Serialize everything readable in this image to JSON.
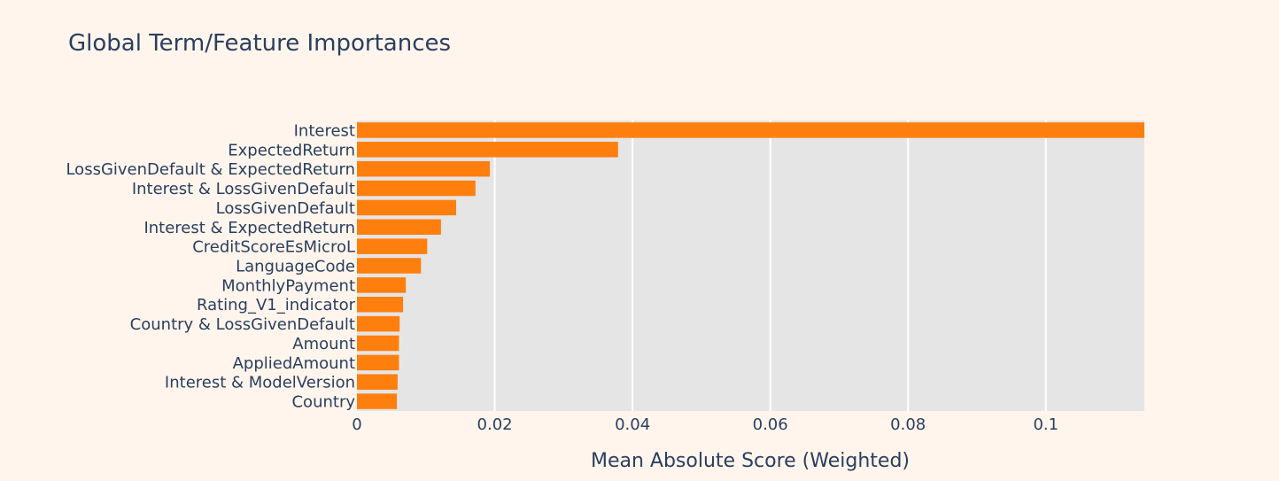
{
  "chart_data": {
    "type": "bar",
    "orientation": "horizontal",
    "title": "Global Term/Feature Importances",
    "xlabel": "Mean Absolute Score (Weighted)",
    "ylabel": "",
    "xlim": [
      0,
      0.1143
    ],
    "xticks": [
      {
        "value": 0,
        "label": "0"
      },
      {
        "value": 0.02,
        "label": "0.02"
      },
      {
        "value": 0.04,
        "label": "0.04"
      },
      {
        "value": 0.06,
        "label": "0.06"
      },
      {
        "value": 0.08,
        "label": "0.08"
      },
      {
        "value": 0.1,
        "label": "0.1"
      }
    ],
    "grid": true,
    "legend": "none",
    "categories": [
      "Interest",
      "ExpectedReturn",
      "LossGivenDefault & ExpectedReturn",
      "Interest & LossGivenDefault",
      "LossGivenDefault",
      "Interest & ExpectedReturn",
      "CreditScoreEsMicroL",
      "LanguageCode",
      "MonthlyPayment",
      "Rating_V1_indicator",
      "Country & LossGivenDefault",
      "Amount",
      "AppliedAmount",
      "Interest & ModelVersion",
      "Country"
    ],
    "values": [
      0.1143,
      0.0379,
      0.0193,
      0.0172,
      0.0144,
      0.0122,
      0.0102,
      0.0093,
      0.0071,
      0.0067,
      0.0062,
      0.0061,
      0.0061,
      0.0059,
      0.0058
    ],
    "colors": {
      "bar": "#ff7f0e",
      "plot_bg": "#e5e5e5",
      "paper_bg": "#fff5ec",
      "grid": "#ffffff",
      "text": "#2a3f5f"
    }
  }
}
